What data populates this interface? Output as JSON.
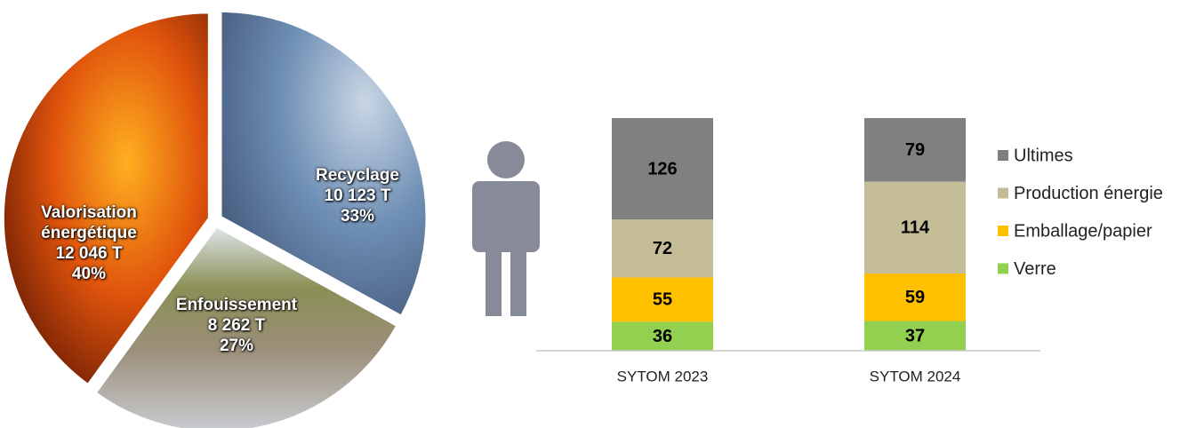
{
  "chart_data": [
    {
      "type": "pie",
      "categories": [
        "Recyclage",
        "Enfouissement",
        "Valorisation énergétique"
      ],
      "values": [
        33,
        27,
        40
      ],
      "value_labels": [
        "33%",
        "27%",
        "40%"
      ],
      "tonnes": [
        10123,
        8262,
        12046
      ],
      "tonnes_labels": [
        "10 123 T",
        "8 262 T",
        "12 046 T"
      ],
      "colors": [
        "#5b7fa8",
        "#8d9270",
        "#c2410c"
      ]
    },
    {
      "type": "bar",
      "stacked": true,
      "categories": [
        "SYTOM 2023",
        "SYTOM 2024"
      ],
      "series": [
        {
          "name": "Verre",
          "color": "#92d050",
          "values": [
            36,
            37
          ]
        },
        {
          "name": "Emballage/papier",
          "color": "#ffc000",
          "values": [
            55,
            59
          ]
        },
        {
          "name": "Production énergie",
          "color": "#c4bd97",
          "values": [
            72,
            114
          ]
        },
        {
          "name": "Ultimes",
          "color": "#808080",
          "values": [
            126,
            79
          ]
        }
      ],
      "ylim": [
        0,
        300
      ]
    }
  ]
}
